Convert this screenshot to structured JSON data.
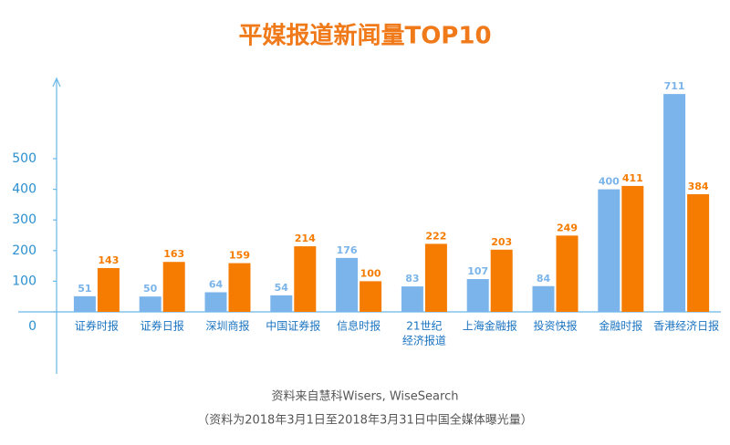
{
  "chart_data": {
    "type": "bar",
    "title": "平媒报道新闻量TOP10",
    "categories": [
      "证券时报",
      "证券日报",
      "深圳商报",
      "中国证券报",
      "信息时报",
      [
        "21世纪",
        "经济报道"
      ],
      "上海金融报",
      "投资快报",
      "金融时报",
      "香港经济日报"
    ],
    "series": [
      {
        "color": "#7ab4ea",
        "values": [
          51,
          50,
          64,
          54,
          176,
          83,
          107,
          84,
          400,
          711
        ]
      },
      {
        "color": "#f57c00",
        "values": [
          143,
          163,
          159,
          214,
          100,
          222,
          203,
          249,
          411,
          384
        ]
      }
    ],
    "ylim": [
      0,
      750
    ],
    "yticks": [
      0,
      100,
      200,
      300,
      400,
      500
    ],
    "notes": [
      "资料来自慧科Wisers, WiseSearch",
      "（资料为2018年3月1日至2018年3月31日中国全媒体曝光量）"
    ]
  }
}
